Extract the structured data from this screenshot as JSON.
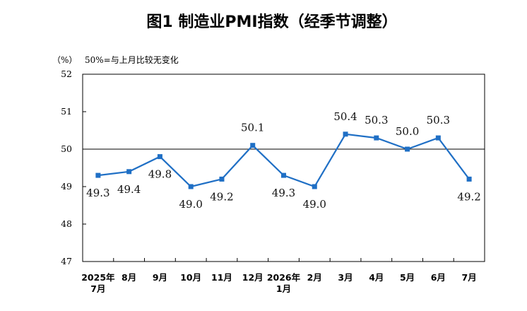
{
  "chart_data": {
    "type": "line",
    "title": "图1 制造业PMI指数（经季节调整）",
    "unit_label": "（%）",
    "annotation": "50%=与上月比较无变化",
    "categories": [
      [
        "2025年",
        "7月"
      ],
      [
        "8月"
      ],
      [
        "9月"
      ],
      [
        "10月"
      ],
      [
        "11月"
      ],
      [
        "12月"
      ],
      [
        "2026年",
        "1月"
      ],
      [
        "2月"
      ],
      [
        "3月"
      ],
      [
        "4月"
      ],
      [
        "5月"
      ],
      [
        "6月"
      ],
      [
        "7月"
      ]
    ],
    "series": [
      {
        "values": [
          49.3,
          49.4,
          49.8,
          49.0,
          49.2,
          50.1,
          49.3,
          49.0,
          50.4,
          50.3,
          50.0,
          50.3,
          49.2
        ],
        "labels": [
          "49.3",
          "49.4",
          "49.8",
          "49.0",
          "49.2",
          "50.1",
          "49.3",
          "49.0",
          "50.4",
          "50.3",
          "50.0",
          "50.3",
          "49.2"
        ],
        "label_position": [
          "below",
          "below",
          "below",
          "below",
          "below",
          "above",
          "below",
          "below",
          "above",
          "above",
          "above",
          "above",
          "below"
        ],
        "color": "#1f6fc5"
      }
    ],
    "yticks": [
      "52",
      "51",
      "50",
      "49",
      "48",
      "47"
    ],
    "ylim": [
      47,
      52
    ],
    "reference_line": 50,
    "grid": false,
    "frame_color": "#000000"
  }
}
